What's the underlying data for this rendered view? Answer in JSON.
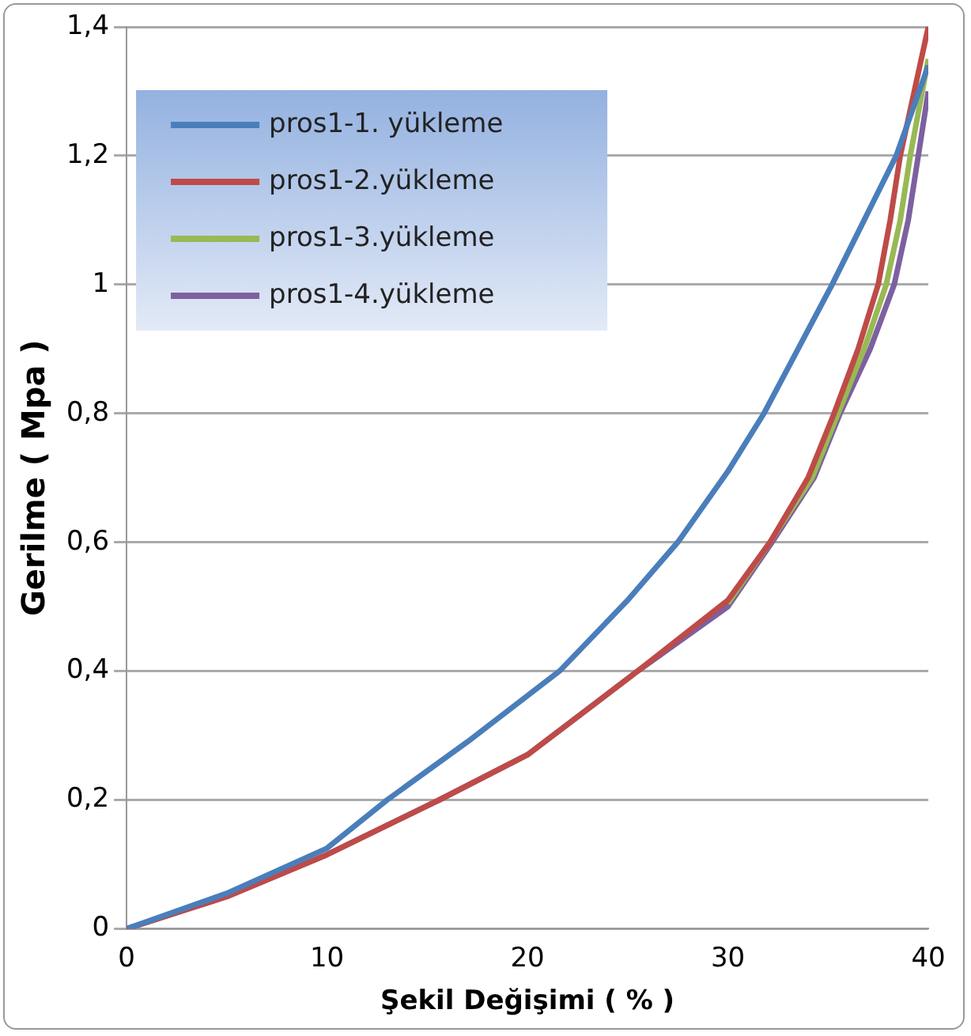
{
  "chart_data": {
    "type": "line",
    "xlabel": "Şekil Değişimi ( % )",
    "ylabel": "Gerilme ( Mpa )",
    "xlim": [
      0,
      40
    ],
    "xticks": [
      0,
      10,
      20,
      30,
      40
    ],
    "ylim": [
      0,
      1.4
    ],
    "yticks": [
      0,
      {
        "value": 0.2,
        "label": "0,2"
      },
      {
        "value": 0.4,
        "label": "0,4"
      },
      {
        "value": 0.6,
        "label": "0,6"
      },
      {
        "value": 0.8,
        "label": "0,8"
      },
      1,
      {
        "value": 1.2,
        "label": "1,2"
      },
      {
        "value": 1.4,
        "label": "1,4"
      }
    ],
    "grid": "y",
    "legend": "top left",
    "marker": "none",
    "line_style": "solid",
    "series": [
      {
        "name": "pros1-1. yükleme",
        "color": "#4a7ebb",
        "x": [
          0,
          5,
          10,
          13,
          17,
          21.6,
          25,
          27.5,
          30,
          31.8,
          33.5,
          35.2,
          36.8,
          38.4,
          40
        ],
        "values": [
          0,
          0.055,
          0.125,
          0.2,
          0.29,
          0.4,
          0.51,
          0.6,
          0.71,
          0.8,
          0.9,
          1.0,
          1.1,
          1.2,
          1.34
        ]
      },
      {
        "name": "pros1-2.yükleme",
        "color": "#be4b48",
        "x": [
          0,
          5,
          10,
          15.6,
          20,
          25.5,
          30,
          32.1,
          34,
          35.3,
          36.5,
          37.5,
          38.1,
          38.6,
          39.3,
          40
        ],
        "values": [
          0,
          0.05,
          0.115,
          0.2,
          0.27,
          0.4,
          0.51,
          0.6,
          0.7,
          0.8,
          0.9,
          1.0,
          1.1,
          1.2,
          1.3,
          1.4
        ]
      },
      {
        "name": "pros1-3.yükleme",
        "color": "#98b954",
        "x": [
          30,
          32.1,
          34.2,
          35.5,
          36.8,
          37.9,
          38.6,
          39.1,
          39.7,
          40
        ],
        "values": [
          0.505,
          0.6,
          0.7,
          0.8,
          0.9,
          1.0,
          1.1,
          1.2,
          1.3,
          1.35
        ]
      },
      {
        "name": "pros1-4.yükleme",
        "color": "#7d60a0",
        "x": [
          0,
          5,
          10,
          15.6,
          20,
          25.5,
          30,
          32.2,
          34.3,
          35.6,
          37.1,
          38.3,
          39,
          39.5,
          40
        ],
        "values": [
          0,
          0.05,
          0.115,
          0.2,
          0.27,
          0.4,
          0.5,
          0.6,
          0.7,
          0.8,
          0.9,
          1.0,
          1.1,
          1.2,
          1.3
        ]
      }
    ]
  }
}
